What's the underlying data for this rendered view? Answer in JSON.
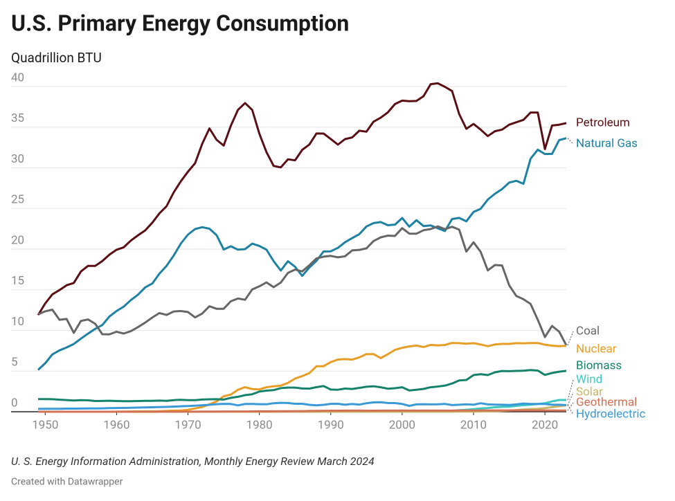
{
  "chart_data": {
    "type": "line",
    "title": "U.S. Primary Energy Consumption",
    "subtitle": "Quadrillion BTU",
    "source": "U. S. Energy Information Administration, Monthly Energy Review March 2024",
    "credit": "Created with Datawrapper",
    "x": [
      1949,
      1950,
      1951,
      1952,
      1953,
      1954,
      1955,
      1956,
      1957,
      1958,
      1959,
      1960,
      1961,
      1962,
      1963,
      1964,
      1965,
      1966,
      1967,
      1968,
      1969,
      1970,
      1971,
      1972,
      1973,
      1974,
      1975,
      1976,
      1977,
      1978,
      1979,
      1980,
      1981,
      1982,
      1983,
      1984,
      1985,
      1986,
      1987,
      1988,
      1989,
      1990,
      1991,
      1992,
      1993,
      1994,
      1995,
      1996,
      1997,
      1998,
      1999,
      2000,
      2001,
      2002,
      2003,
      2004,
      2005,
      2006,
      2007,
      2008,
      2009,
      2010,
      2011,
      2012,
      2013,
      2014,
      2015,
      2016,
      2017,
      2018,
      2019,
      2020,
      2021,
      2022,
      2023
    ],
    "xlim": [
      1949,
      2023
    ],
    "xticks": [
      1950,
      1960,
      1970,
      1980,
      1990,
      2000,
      2010,
      2020
    ],
    "ylim": [
      0,
      40
    ],
    "yticks": [
      0,
      5,
      10,
      15,
      20,
      25,
      30,
      35,
      40
    ],
    "grid": true,
    "series": [
      {
        "name": "Petroleum",
        "color": "#5a0f14",
        "values": [
          11.88,
          13.32,
          14.43,
          14.96,
          15.56,
          15.84,
          17.25,
          17.94,
          17.93,
          18.53,
          19.32,
          19.92,
          20.22,
          21.05,
          21.7,
          22.3,
          23.25,
          24.4,
          25.28,
          26.98,
          28.34,
          29.52,
          30.56,
          32.95,
          34.84,
          33.45,
          32.73,
          35.17,
          37.12,
          37.97,
          37.12,
          34.2,
          31.93,
          30.23,
          30.05,
          31.05,
          30.92,
          32.2,
          32.86,
          34.22,
          34.21,
          33.55,
          32.85,
          33.53,
          33.74,
          34.56,
          34.44,
          35.68,
          36.16,
          36.82,
          37.84,
          38.26,
          38.19,
          38.22,
          38.81,
          40.29,
          40.39,
          39.96,
          39.44,
          36.6,
          34.8,
          35.4,
          34.7,
          33.9,
          34.5,
          34.7,
          35.3,
          35.6,
          35.9,
          36.8,
          36.8,
          32.3,
          35.2,
          35.3,
          35.5
        ]
      },
      {
        "name": "Natural Gas",
        "color": "#1d81a2",
        "values": [
          5.15,
          5.97,
          7.05,
          7.55,
          7.91,
          8.33,
          9.0,
          9.61,
          10.19,
          10.66,
          11.72,
          12.39,
          12.93,
          13.73,
          14.4,
          15.29,
          15.77,
          16.99,
          17.94,
          19.21,
          20.68,
          21.79,
          22.47,
          22.7,
          22.51,
          21.73,
          19.95,
          20.35,
          19.93,
          20.0,
          20.67,
          20.39,
          19.93,
          18.51,
          17.36,
          18.51,
          17.83,
          16.71,
          17.74,
          18.55,
          19.71,
          19.73,
          20.15,
          20.84,
          21.35,
          21.84,
          22.78,
          23.2,
          23.33,
          22.94,
          23.01,
          23.82,
          22.77,
          23.56,
          22.83,
          22.91,
          22.56,
          22.22,
          23.7,
          23.84,
          23.42,
          24.57,
          24.96,
          26.09,
          26.81,
          27.38,
          28.19,
          28.4,
          28.03,
          31.12,
          32.23,
          31.69,
          31.71,
          33.41,
          33.64
        ]
      },
      {
        "name": "Coal",
        "color": "#666666",
        "values": [
          11.98,
          12.35,
          12.55,
          11.31,
          11.41,
          9.7,
          11.17,
          11.35,
          10.82,
          9.53,
          9.52,
          9.84,
          9.62,
          9.91,
          10.41,
          10.96,
          11.58,
          12.14,
          11.91,
          12.33,
          12.38,
          12.26,
          11.6,
          12.08,
          12.97,
          12.66,
          12.66,
          13.58,
          13.92,
          13.77,
          15.04,
          15.42,
          15.91,
          15.32,
          15.89,
          17.07,
          17.48,
          17.26,
          18.01,
          18.85,
          19.07,
          19.17,
          18.99,
          19.12,
          19.84,
          19.91,
          20.09,
          21.0,
          21.45,
          21.66,
          21.62,
          22.58,
          21.91,
          21.9,
          22.32,
          22.47,
          22.8,
          22.45,
          22.75,
          22.39,
          19.69,
          20.83,
          19.66,
          17.38,
          18.04,
          17.99,
          15.55,
          14.23,
          13.84,
          13.25,
          11.31,
          9.18,
          10.55,
          9.85,
          8.17
        ]
      },
      {
        "name": "Nuclear",
        "color": "#e89e24",
        "values": [
          0,
          0,
          0,
          0,
          0,
          0,
          0,
          0,
          0,
          0,
          0,
          0.01,
          0.02,
          0.03,
          0.04,
          0.04,
          0.04,
          0.06,
          0.09,
          0.14,
          0.15,
          0.24,
          0.41,
          0.58,
          0.91,
          1.27,
          1.9,
          2.11,
          2.7,
          3.02,
          2.78,
          2.74,
          3.01,
          3.13,
          3.2,
          3.55,
          4.08,
          4.38,
          4.75,
          5.59,
          5.6,
          6.1,
          6.42,
          6.48,
          6.41,
          6.69,
          7.08,
          7.09,
          6.6,
          7.07,
          7.61,
          7.86,
          8.03,
          8.14,
          7.96,
          8.22,
          8.16,
          8.21,
          8.46,
          8.43,
          8.36,
          8.43,
          8.27,
          8.06,
          8.27,
          8.34,
          8.34,
          8.43,
          8.42,
          8.44,
          8.45,
          8.25,
          8.13,
          8.06,
          8.1
        ]
      },
      {
        "name": "Biomass",
        "color": "#15826b",
        "values": [
          1.55,
          1.56,
          1.54,
          1.48,
          1.44,
          1.39,
          1.42,
          1.4,
          1.32,
          1.33,
          1.35,
          1.32,
          1.29,
          1.3,
          1.32,
          1.34,
          1.34,
          1.37,
          1.34,
          1.43,
          1.47,
          1.43,
          1.43,
          1.5,
          1.53,
          1.54,
          1.5,
          1.71,
          1.84,
          2.04,
          2.15,
          2.48,
          2.6,
          2.66,
          2.9,
          2.97,
          2.97,
          2.86,
          2.84,
          3.02,
          3.16,
          2.73,
          2.71,
          2.85,
          2.8,
          2.94,
          3.07,
          3.13,
          3.01,
          2.83,
          2.89,
          3.01,
          2.62,
          2.71,
          2.81,
          3.01,
          3.1,
          3.21,
          3.47,
          3.85,
          3.91,
          4.51,
          4.61,
          4.51,
          4.85,
          5.01,
          4.99,
          5.02,
          5.04,
          5.13,
          5.06,
          4.53,
          4.77,
          4.93,
          5.03
        ]
      },
      {
        "name": "Wind",
        "color": "#3ec9c0",
        "values": [
          0,
          0,
          0,
          0,
          0,
          0,
          0,
          0,
          0,
          0,
          0,
          0,
          0,
          0,
          0,
          0,
          0,
          0,
          0,
          0,
          0,
          0,
          0,
          0,
          0,
          0,
          0,
          0,
          0,
          0,
          0,
          0,
          0,
          0,
          0,
          0,
          0,
          0.01,
          0.01,
          0.01,
          0.02,
          0.03,
          0.03,
          0.03,
          0.03,
          0.03,
          0.03,
          0.03,
          0.03,
          0.03,
          0.05,
          0.02,
          0.02,
          0.04,
          0.04,
          0.05,
          0.06,
          0.09,
          0.12,
          0.19,
          0.25,
          0.32,
          0.41,
          0.46,
          0.55,
          0.6,
          0.62,
          0.72,
          0.81,
          0.86,
          0.95,
          1.04,
          1.27,
          1.45,
          1.45
        ]
      },
      {
        "name": "Solar",
        "color": "#c9b66b",
        "values": [
          0,
          0,
          0,
          0,
          0,
          0,
          0,
          0,
          0,
          0,
          0,
          0,
          0,
          0,
          0,
          0,
          0,
          0,
          0,
          0,
          0,
          0,
          0,
          0,
          0,
          0,
          0,
          0,
          0,
          0,
          0,
          0,
          0,
          0,
          0,
          0,
          0,
          0,
          0,
          0,
          0,
          0,
          0,
          0,
          0,
          0,
          0,
          0,
          0,
          0,
          0,
          0,
          0,
          0,
          0,
          0,
          0,
          0,
          0,
          0.01,
          0.01,
          0.01,
          0.02,
          0.04,
          0.06,
          0.1,
          0.15,
          0.2,
          0.28,
          0.33,
          0.37,
          0.45,
          0.56,
          0.68,
          0.78
        ]
      },
      {
        "name": "Geothermal",
        "color": "#d37155",
        "values": [
          0,
          0,
          0,
          0,
          0,
          0,
          0,
          0,
          0,
          0,
          0,
          0,
          0,
          0,
          0,
          0,
          0,
          0.01,
          0.01,
          0.01,
          0.01,
          0.01,
          0.01,
          0.02,
          0.02,
          0.02,
          0.03,
          0.03,
          0.03,
          0.03,
          0.04,
          0.05,
          0.05,
          0.05,
          0.06,
          0.07,
          0.08,
          0.08,
          0.09,
          0.1,
          0.12,
          0.13,
          0.13,
          0.14,
          0.14,
          0.14,
          0.13,
          0.13,
          0.14,
          0.14,
          0.14,
          0.15,
          0.14,
          0.14,
          0.14,
          0.14,
          0.14,
          0.14,
          0.14,
          0.15,
          0.15,
          0.15,
          0.16,
          0.16,
          0.16,
          0.16,
          0.16,
          0.16,
          0.16,
          0.16,
          0.16,
          0.16,
          0.16,
          0.15,
          0.15
        ]
      },
      {
        "name": "Hydroelectric",
        "color": "#3a9ad9",
        "values": [
          0.35,
          0.36,
          0.37,
          0.37,
          0.38,
          0.38,
          0.39,
          0.4,
          0.41,
          0.42,
          0.44,
          0.46,
          0.47,
          0.49,
          0.51,
          0.53,
          0.55,
          0.57,
          0.6,
          0.63,
          0.67,
          0.7,
          0.75,
          0.8,
          0.85,
          0.93,
          0.97,
          0.95,
          0.78,
          0.95,
          0.95,
          0.93,
          0.92,
          1.05,
          1.1,
          1.07,
          0.98,
          0.98,
          0.85,
          0.78,
          0.85,
          0.97,
          0.98,
          0.86,
          0.95,
          0.88,
          1.05,
          1.15,
          1.17,
          1.07,
          1.06,
          0.95,
          0.72,
          0.9,
          0.93,
          0.9,
          0.91,
          0.96,
          0.82,
          0.86,
          0.92,
          0.86,
          1.05,
          0.9,
          0.88,
          0.86,
          0.83,
          0.9,
          1.01,
          0.96,
          0.96,
          0.95,
          0.86,
          0.86,
          0.82
        ]
      }
    ]
  }
}
